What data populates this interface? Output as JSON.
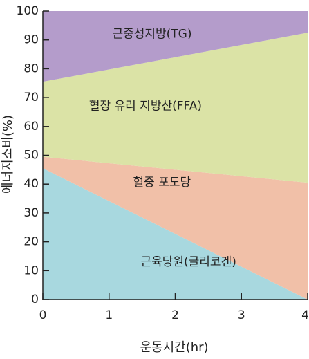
{
  "chart_data": {
    "type": "area",
    "stacked": true,
    "x": [
      0,
      4
    ],
    "xticks": [
      0,
      1,
      2,
      3,
      4
    ],
    "yticks": [
      0,
      10,
      20,
      30,
      40,
      50,
      60,
      70,
      80,
      90,
      100
    ],
    "xlim": [
      0,
      4
    ],
    "ylim": [
      0,
      100
    ],
    "xlabel": "운동시간(hr)",
    "ylabel": "에너지소비(%)",
    "series": [
      {
        "name": "근육당원(글리코겐)",
        "values": [
          45.5,
          0
        ],
        "color": "#a8d8df",
        "label_at": {
          "x": 2.2,
          "y": 13
        }
      },
      {
        "name": "혈중 포도당",
        "values": [
          4,
          40.5
        ],
        "color": "#f1c0a8",
        "label_at": {
          "x": 1.8,
          "y": 40.5
        }
      },
      {
        "name": "혈장 유리 지방산(FFA)",
        "values": [
          26,
          52
        ],
        "color": "#dbe3a6",
        "label_at": {
          "x": 1.55,
          "y": 67
        }
      },
      {
        "name": "근중성지방(TG)",
        "values": [
          24.5,
          7.5
        ],
        "color": "#b49ccb",
        "label_at": {
          "x": 1.65,
          "y": 92
        }
      }
    ]
  }
}
